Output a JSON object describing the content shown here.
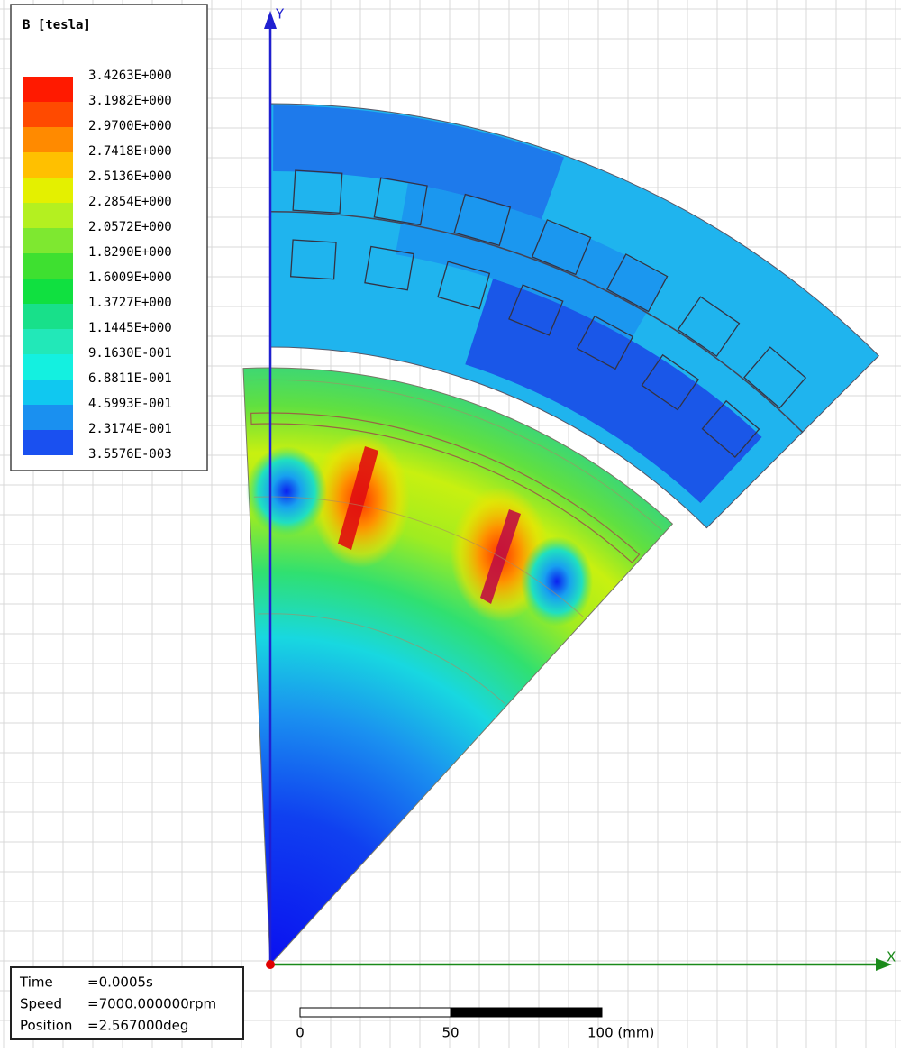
{
  "legend": {
    "title": "B [tesla]",
    "labels": [
      "3.4263E+000",
      "3.1982E+000",
      "2.9700E+000",
      "2.7418E+000",
      "2.5136E+000",
      "2.2854E+000",
      "2.0572E+000",
      "1.8290E+000",
      "1.6009E+000",
      "1.3727E+000",
      "1.1445E+000",
      "9.1630E-001",
      "6.8811E-001",
      "4.5993E-001",
      "2.3174E-001",
      "3.5576E-003"
    ],
    "colors": [
      "#ff1a00",
      "#ff4a00",
      "#ff8a00",
      "#ffc000",
      "#e4f000",
      "#b4f020",
      "#7ee830",
      "#3ee030",
      "#10e040",
      "#18e08a",
      "#22e8b8",
      "#14f0e0",
      "#10c8f0",
      "#1a90f0",
      "#1a50f0",
      "#0a10f0"
    ]
  },
  "axes": {
    "x": "X",
    "y": "Y"
  },
  "info": [
    {
      "label": "Time",
      "value": "=0.0005s"
    },
    {
      "label": "Speed",
      "value": "=7000.000000rpm"
    },
    {
      "label": "Position",
      "value": "=2.567000deg"
    }
  ],
  "scale": {
    "labels": [
      "0",
      "50",
      "100 (mm)"
    ]
  }
}
